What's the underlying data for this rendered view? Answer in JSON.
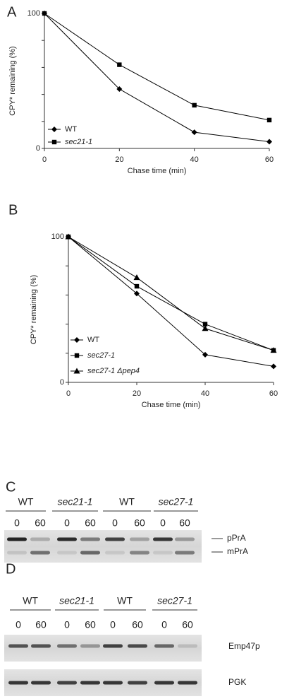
{
  "chart_data": [
    {
      "type": "line",
      "panel": "A",
      "xlabel": "Chase time (min)",
      "ylabel": "CPY* remaining (%)",
      "x": [
        0,
        20,
        40,
        60
      ],
      "xlim": [
        0,
        60
      ],
      "xticks": [
        0,
        20,
        40,
        60
      ],
      "ylim": [
        0,
        100
      ],
      "yticks": [
        0,
        100
      ],
      "yminorticks": [
        20,
        40,
        60,
        80
      ],
      "legend": "lower left",
      "series": [
        {
          "name": "WT",
          "color": "#000000",
          "marker": "diamond",
          "style": "normal",
          "values": [
            100,
            44,
            12,
            5
          ]
        },
        {
          "name": "sec21-1",
          "color": "#000000",
          "marker": "square",
          "style": "italic",
          "values": [
            100,
            62,
            32,
            21
          ]
        }
      ]
    },
    {
      "type": "line",
      "panel": "B",
      "xlabel": "Chase time (min)",
      "ylabel": "CPY* remaining (%)",
      "x": [
        0,
        20,
        40,
        60
      ],
      "xlim": [
        0,
        60
      ],
      "xticks": [
        0,
        20,
        40,
        60
      ],
      "ylim": [
        0,
        100
      ],
      "yticks": [
        0,
        100
      ],
      "yminorticks": [
        20,
        40,
        60,
        80
      ],
      "legend": "lower left",
      "series": [
        {
          "name": "WT",
          "color": "#000000",
          "marker": "diamond",
          "style": "normal",
          "values": [
            100,
            61,
            19,
            11
          ]
        },
        {
          "name": "sec27-1",
          "color": "#000000",
          "marker": "square",
          "style": "italic",
          "values": [
            100,
            66,
            40,
            22
          ]
        },
        {
          "name": "sec27-1 Δpep4",
          "color": "#000000",
          "marker": "triangle",
          "style": "italic",
          "values": [
            100,
            72,
            37,
            22
          ]
        }
      ]
    }
  ],
  "blots": [
    {
      "panel": "C",
      "groups": [
        {
          "name": "WT",
          "style": "normal",
          "times": [
            0,
            60
          ]
        },
        {
          "name": "sec21-1",
          "style": "italic",
          "times": [
            0,
            60
          ]
        },
        {
          "name": "WT",
          "style": "normal",
          "times": [
            0,
            60
          ]
        },
        {
          "name": "sec27-1",
          "style": "italic",
          "times": [
            0,
            60
          ]
        }
      ],
      "bands": [
        "pPrA",
        "mPrA"
      ]
    },
    {
      "panel": "D",
      "groups": [
        {
          "name": "WT",
          "style": "normal",
          "times": [
            0,
            60
          ]
        },
        {
          "name": "sec21-1",
          "style": "italic",
          "times": [
            0,
            60
          ]
        },
        {
          "name": "WT",
          "style": "normal",
          "times": [
            0,
            60
          ]
        },
        {
          "name": "sec27-1",
          "style": "italic",
          "times": [
            0,
            60
          ]
        }
      ],
      "bands": [
        "Emp47p",
        "PGK"
      ]
    }
  ]
}
